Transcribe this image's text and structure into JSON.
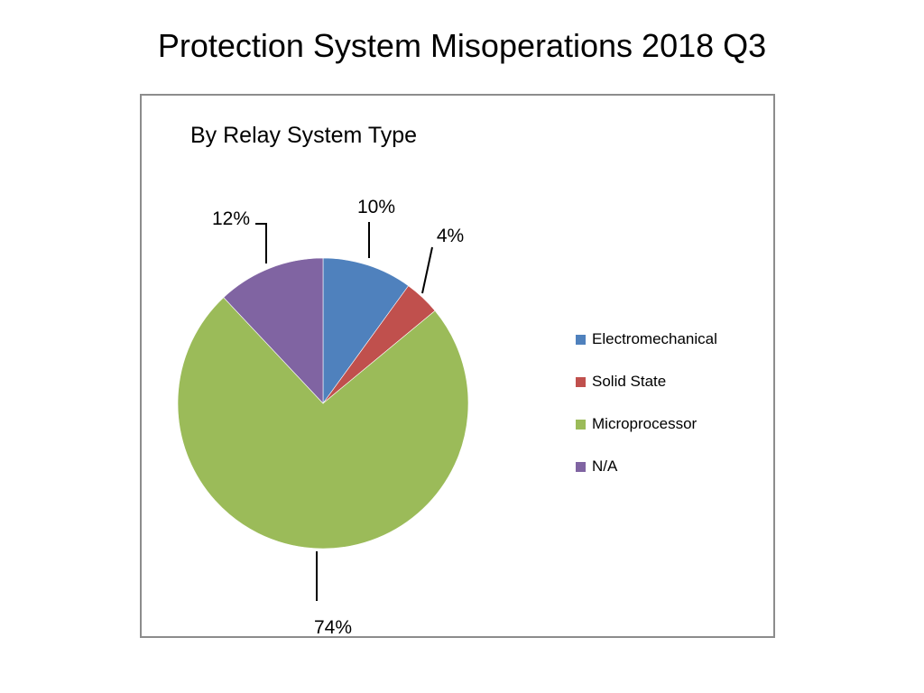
{
  "title": "Protection System Misoperations 2018 Q3",
  "chart_data": {
    "type": "pie",
    "title": "By Relay System Type",
    "categories": [
      "Electromechanical",
      "Solid State",
      "Microprocessor",
      "N/A"
    ],
    "values": [
      10,
      4,
      74,
      12
    ],
    "data_labels": [
      "10%",
      "4%",
      "74%",
      "12%"
    ],
    "colors": [
      "#4f81bd",
      "#c0504d",
      "#9bbb59",
      "#8064a2"
    ],
    "legend_position": "right",
    "start_angle": "12 o'clock",
    "direction": "clockwise"
  }
}
